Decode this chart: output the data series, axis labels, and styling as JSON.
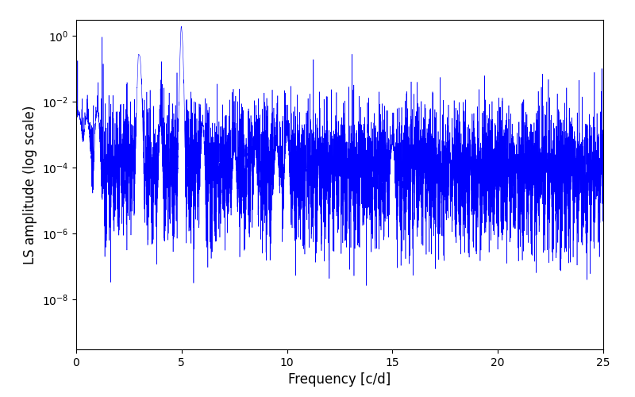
{
  "xlabel": "Frequency [c/d]",
  "ylabel": "LS amplitude (log scale)",
  "line_color": "#0000ff",
  "xlim": [
    0,
    25
  ],
  "ylim_bottom": 3e-10,
  "ylim_top": 3.0,
  "background_color": "#ffffff",
  "figsize": [
    8.0,
    5.0
  ],
  "dpi": 100,
  "yscale": "log",
  "yticks": [
    1e-08,
    1e-06,
    0.0001,
    0.01,
    1.0
  ],
  "xticks": [
    0,
    5,
    10,
    15,
    20,
    25
  ],
  "seed": 12345,
  "n_points": 8000,
  "freq_max": 25.0
}
